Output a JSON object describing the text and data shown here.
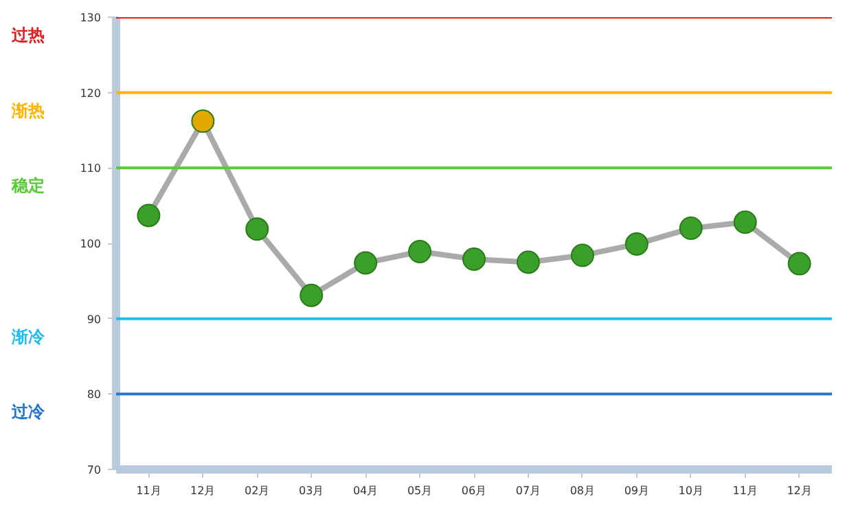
{
  "chart_data": {
    "type": "line",
    "categories": [
      "11月",
      "12月",
      "02月",
      "03月",
      "04月",
      "05月",
      "06月",
      "07月",
      "08月",
      "09月",
      "10月",
      "11月",
      "12月"
    ],
    "series": [
      {
        "color": "#aaaaaa",
        "colors": [
          "#3aa02a",
          "#e0a800",
          "#3aa02a",
          "#3aa02a",
          "#3aa02a",
          "#3aa02a",
          "#3aa02a",
          "#3aa02a",
          "#3aa02a",
          "#3aa02a",
          "#3aa02a",
          "#3aa02a",
          "#3aa02a"
        ],
        "values": [
          103.7,
          116.2,
          101.9,
          93.1,
          97.4,
          98.9,
          97.9,
          97.5,
          98.4,
          99.9,
          102.0,
          102.8,
          97.3
        ]
      }
    ],
    "ylim": [
      70,
      130
    ],
    "yticks": [
      70,
      80,
      90,
      100,
      110,
      120,
      130
    ],
    "grid": false,
    "marker": "circle",
    "ref_lines": [
      {
        "axis": "y",
        "value": 130,
        "label": "过热",
        "color": "#e02020"
      },
      {
        "axis": "y",
        "value": 120,
        "label": "渐热",
        "color": "#ffb400"
      },
      {
        "axis": "y",
        "value": 110,
        "label": "稳定",
        "color": "#55cc33"
      },
      {
        "axis": "y",
        "value": 90,
        "label": "渐冷",
        "color": "#22bbee"
      },
      {
        "axis": "y",
        "value": 80,
        "label": "过冷",
        "color": "#2277cc"
      }
    ]
  }
}
